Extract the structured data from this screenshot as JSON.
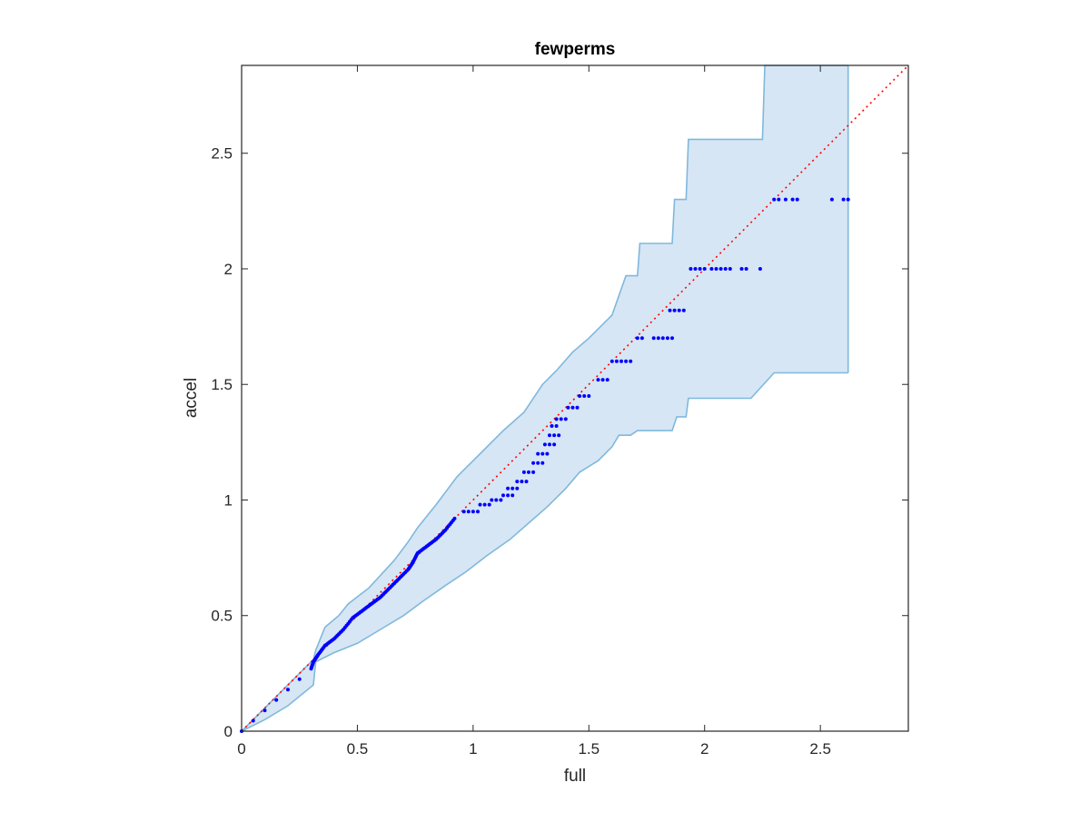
{
  "chart_data": {
    "type": "scatter",
    "title": "fewperms",
    "xlabel": "full",
    "ylabel": "accel",
    "xlim": [
      0,
      2.88
    ],
    "ylim": [
      0,
      2.88
    ],
    "xticks": [
      0,
      0.5,
      1,
      1.5,
      2,
      2.5
    ],
    "xtick_labels": [
      "0",
      "0.5",
      "1",
      "1.5",
      "2",
      "2.5"
    ],
    "yticks": [
      0,
      0.5,
      1,
      1.5,
      2,
      2.5
    ],
    "ytick_labels": [
      "0",
      "0.5",
      "1",
      "1.5",
      "2",
      "2.5"
    ],
    "grid": false,
    "legend": "none",
    "colors": {
      "points": "#0000ff",
      "reference_line": "#ff0000",
      "band_fill": "#d6e6f4",
      "band_edge": "#80b8dc",
      "axes": "#262626"
    },
    "reference_line": {
      "style": "dotted",
      "from": [
        0,
        0
      ],
      "to": [
        2.88,
        2.88
      ]
    },
    "band_upper": [
      [
        0,
        0
      ],
      [
        0.1,
        0.1
      ],
      [
        0.2,
        0.2
      ],
      [
        0.31,
        0.31
      ],
      [
        0.32,
        0.35
      ],
      [
        0.36,
        0.45
      ],
      [
        0.42,
        0.5
      ],
      [
        0.46,
        0.55
      ],
      [
        0.55,
        0.62
      ],
      [
        0.66,
        0.74
      ],
      [
        0.72,
        0.82
      ],
      [
        0.76,
        0.88
      ],
      [
        0.84,
        0.98
      ],
      [
        0.93,
        1.1
      ],
      [
        1.04,
        1.21
      ],
      [
        1.13,
        1.3
      ],
      [
        1.22,
        1.38
      ],
      [
        1.3,
        1.5
      ],
      [
        1.36,
        1.56
      ],
      [
        1.43,
        1.64
      ],
      [
        1.5,
        1.7
      ],
      [
        1.56,
        1.76
      ],
      [
        1.6,
        1.8
      ],
      [
        1.66,
        1.97
      ],
      [
        1.71,
        1.97
      ],
      [
        1.72,
        2.11
      ],
      [
        1.86,
        2.11
      ],
      [
        1.87,
        2.3
      ],
      [
        1.92,
        2.3
      ],
      [
        1.93,
        2.56
      ],
      [
        2.25,
        2.56
      ],
      [
        2.26,
        2.88
      ],
      [
        2.62,
        2.88
      ]
    ],
    "band_lower": [
      [
        0,
        0
      ],
      [
        0.1,
        0.05
      ],
      [
        0.2,
        0.11
      ],
      [
        0.31,
        0.2
      ],
      [
        0.32,
        0.3
      ],
      [
        0.4,
        0.34
      ],
      [
        0.5,
        0.38
      ],
      [
        0.6,
        0.44
      ],
      [
        0.7,
        0.5
      ],
      [
        0.78,
        0.56
      ],
      [
        0.88,
        0.63
      ],
      [
        0.97,
        0.69
      ],
      [
        1.06,
        0.76
      ],
      [
        1.16,
        0.83
      ],
      [
        1.24,
        0.9
      ],
      [
        1.32,
        0.97
      ],
      [
        1.4,
        1.05
      ],
      [
        1.46,
        1.12
      ],
      [
        1.54,
        1.17
      ],
      [
        1.6,
        1.23
      ],
      [
        1.63,
        1.28
      ],
      [
        1.68,
        1.28
      ],
      [
        1.71,
        1.3
      ],
      [
        1.86,
        1.3
      ],
      [
        1.88,
        1.36
      ],
      [
        1.92,
        1.36
      ],
      [
        1.93,
        1.44
      ],
      [
        2.2,
        1.44
      ],
      [
        2.3,
        1.55
      ],
      [
        2.62,
        1.55
      ]
    ],
    "points_curve": {
      "description": "dense run of points along the reference line",
      "x": [
        0,
        0.3,
        0.31,
        0.33,
        0.36,
        0.4,
        0.44,
        0.48,
        0.52,
        0.56,
        0.6,
        0.64,
        0.68,
        0.72,
        0.74,
        0.76,
        0.8,
        0.84,
        0.88,
        0.92
      ],
      "y": [
        0,
        0.27,
        0.3,
        0.33,
        0.37,
        0.4,
        0.44,
        0.49,
        0.52,
        0.55,
        0.58,
        0.62,
        0.66,
        0.7,
        0.73,
        0.77,
        0.8,
        0.83,
        0.87,
        0.92
      ]
    },
    "points_steps": [
      {
        "y": 0.95,
        "x": [
          0.96,
          0.98,
          1.0,
          1.02
        ]
      },
      {
        "y": 0.98,
        "x": [
          1.03,
          1.05,
          1.07
        ]
      },
      {
        "y": 1.0,
        "x": [
          1.08,
          1.1,
          1.12
        ]
      },
      {
        "y": 1.02,
        "x": [
          1.13,
          1.15,
          1.17
        ]
      },
      {
        "y": 1.05,
        "x": [
          1.15,
          1.17,
          1.19
        ]
      },
      {
        "y": 1.08,
        "x": [
          1.19,
          1.21,
          1.23
        ]
      },
      {
        "y": 1.12,
        "x": [
          1.22,
          1.24,
          1.26
        ]
      },
      {
        "y": 1.16,
        "x": [
          1.26,
          1.28,
          1.3
        ]
      },
      {
        "y": 1.2,
        "x": [
          1.28,
          1.3,
          1.32
        ]
      },
      {
        "y": 1.24,
        "x": [
          1.31,
          1.33,
          1.35
        ]
      },
      {
        "y": 1.28,
        "x": [
          1.33,
          1.35,
          1.37
        ]
      },
      {
        "y": 1.32,
        "x": [
          1.34,
          1.36
        ]
      },
      {
        "y": 1.35,
        "x": [
          1.36,
          1.38,
          1.4
        ]
      },
      {
        "y": 1.4,
        "x": [
          1.41,
          1.43,
          1.45
        ]
      },
      {
        "y": 1.45,
        "x": [
          1.46,
          1.48,
          1.5
        ]
      },
      {
        "y": 1.52,
        "x": [
          1.54,
          1.56,
          1.58
        ]
      },
      {
        "y": 1.6,
        "x": [
          1.6,
          1.62,
          1.64,
          1.66,
          1.68
        ]
      },
      {
        "y": 1.7,
        "x": [
          1.71,
          1.73,
          1.78,
          1.8,
          1.82,
          1.84,
          1.86
        ]
      },
      {
        "y": 1.82,
        "x": [
          1.85,
          1.87,
          1.89,
          1.91
        ]
      },
      {
        "y": 2.0,
        "x": [
          1.94,
          1.96,
          1.98,
          2.0,
          2.03,
          2.05,
          2.07,
          2.09,
          2.11,
          2.16,
          2.18,
          2.24
        ]
      },
      {
        "y": 2.3,
        "x": [
          2.3,
          2.32,
          2.35,
          2.38,
          2.4,
          2.55,
          2.6,
          2.62
        ]
      }
    ]
  }
}
